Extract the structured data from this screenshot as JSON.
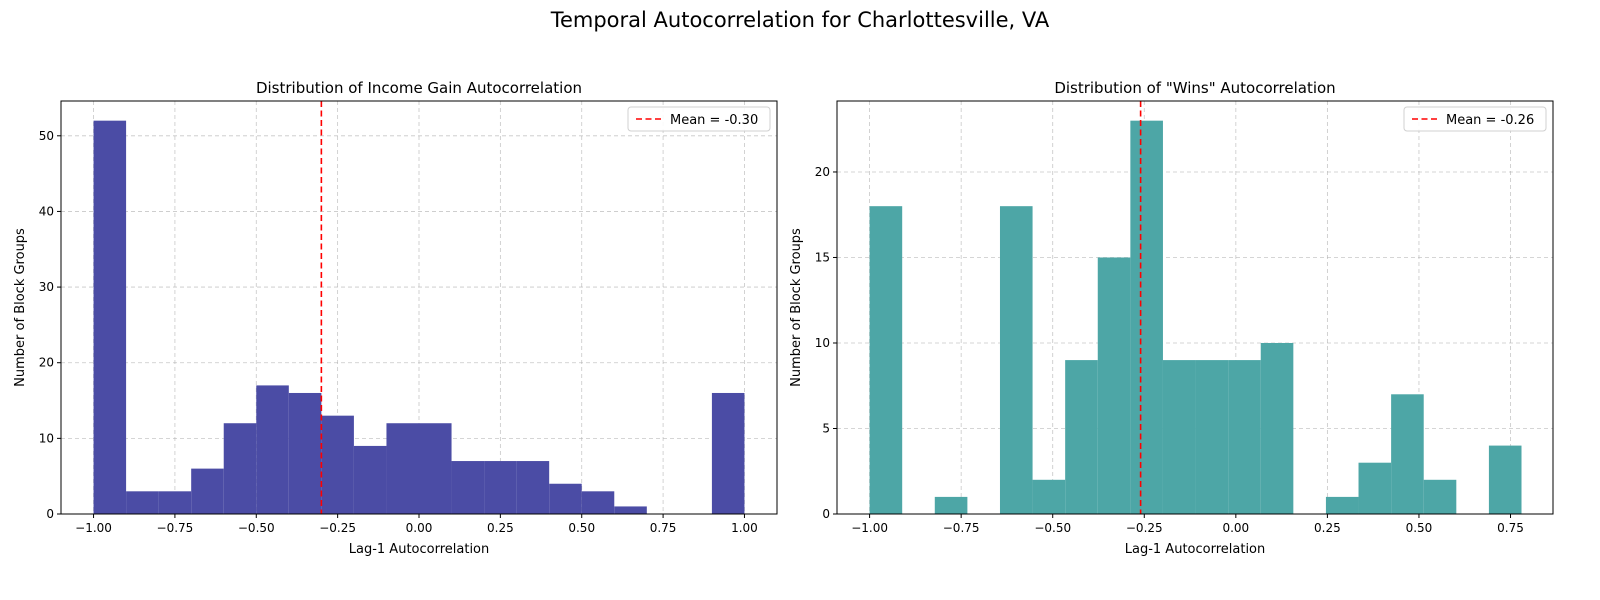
{
  "suptitle": "Temporal Autocorrelation for Charlottesville, VA",
  "chart_data": [
    {
      "type": "bar",
      "title": "Distribution of Income Gain Autocorrelation",
      "xlabel": "Lag-1 Autocorrelation",
      "ylabel": "Number of Block Groups",
      "xlim": [
        -1.1,
        1.1
      ],
      "ylim": [
        0,
        54.6
      ],
      "xticks": [
        -1.0,
        -0.75,
        -0.5,
        -0.25,
        0.0,
        0.25,
        0.5,
        0.75,
        1.0
      ],
      "xtick_labels": [
        "−1.00",
        "−0.75",
        "−0.50",
        "−0.25",
        "0.00",
        "0.25",
        "0.50",
        "0.75",
        "1.00"
      ],
      "yticks": [
        0,
        10,
        20,
        30,
        40,
        50
      ],
      "ytick_labels": [
        "0",
        "10",
        "20",
        "30",
        "40",
        "50"
      ],
      "bin_edges": [
        -1.0,
        -0.9,
        -0.8,
        -0.7,
        -0.6,
        -0.5,
        -0.4,
        -0.3,
        -0.2,
        -0.1,
        0.0,
        0.1,
        0.2,
        0.3,
        0.4,
        0.5,
        0.6,
        0.7,
        0.8,
        0.9,
        1.0
      ],
      "counts": [
        52,
        3,
        3,
        6,
        12,
        17,
        16,
        13,
        9,
        12,
        12,
        7,
        7,
        7,
        4,
        3,
        1,
        0,
        0,
        16
      ],
      "color": "#4b4ca5",
      "mean": -0.3,
      "mean_color": "#ff0000",
      "legend": "Mean = -0.30",
      "legend_position": "top-right",
      "grid": true
    },
    {
      "type": "bar",
      "title": "Distribution of \"Wins\" Autocorrelation",
      "xlabel": "Lag-1 Autocorrelation",
      "ylabel": "Number of Block Groups",
      "xlim": [
        -1.089,
        0.866
      ],
      "ylim": [
        0,
        24.15
      ],
      "xticks": [
        -1.0,
        -0.75,
        -0.5,
        -0.25,
        0.0,
        0.25,
        0.5,
        0.75
      ],
      "xtick_labels": [
        "−1.00",
        "−0.75",
        "−0.50",
        "−0.25",
        "0.00",
        "0.25",
        "0.50",
        "0.75"
      ],
      "yticks": [
        0,
        5,
        10,
        15,
        20
      ],
      "ytick_labels": [
        "0",
        "5",
        "10",
        "15",
        "20"
      ],
      "bin_edges": [
        -1.0,
        -0.911,
        -0.822,
        -0.733,
        -0.644,
        -0.555,
        -0.466,
        -0.377,
        -0.288,
        -0.199,
        -0.11,
        -0.021,
        0.068,
        0.157,
        0.246,
        0.335,
        0.424,
        0.513,
        0.602,
        0.691,
        0.78
      ],
      "counts": [
        18,
        0,
        1,
        0,
        18,
        2,
        9,
        15,
        23,
        9,
        9,
        9,
        10,
        0,
        1,
        3,
        7,
        2,
        0,
        4
      ],
      "color": "#4da6a6",
      "mean": -0.26,
      "mean_color": "#ff0000",
      "legend": "Mean = -0.26",
      "legend_position": "top-right",
      "grid": true
    }
  ]
}
